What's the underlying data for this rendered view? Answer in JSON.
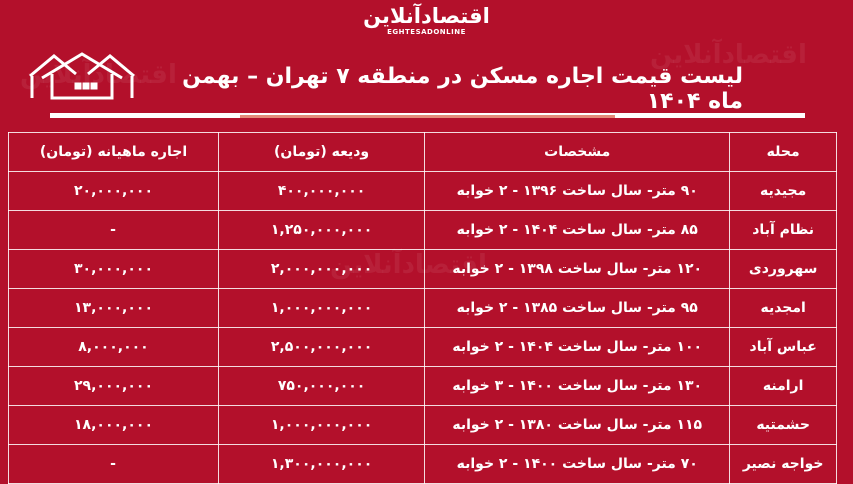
{
  "brand": {
    "name_fa": "اقتصادآنلاین",
    "name_en": "EGHTESADONLINE"
  },
  "title": "لیست قیمت اجاره مسکن در منطقه ۷ تهران – بهمن ماه ۱۴۰۴",
  "colors": {
    "background": "#b3102b",
    "text": "#ffffff",
    "accent_bar": "#e58a7a"
  },
  "icons": [
    "house-icon"
  ],
  "table": {
    "headers": {
      "neighborhood": "محله",
      "specs": "مشخصات",
      "deposit": "ودیعه (تومان)",
      "rent": "اجاره ماهیانه (تومان)"
    },
    "rows": [
      {
        "neighborhood": "مجیدیه",
        "specs": "۹۰ متر- سال ساخت ۱۳۹۶ - ۲ خوابه",
        "deposit": "۴۰۰,۰۰۰,۰۰۰",
        "rent": "۲۰,۰۰۰,۰۰۰"
      },
      {
        "neighborhood": "نظام آباد",
        "specs": "۸۵ متر- سال ساخت ۱۴۰۴ - ۲ خوابه",
        "deposit": "۱,۲۵۰,۰۰۰,۰۰۰",
        "rent": "-"
      },
      {
        "neighborhood": "سهروردی",
        "specs": "۱۲۰ متر- سال ساخت ۱۳۹۸ - ۲ خوابه",
        "deposit": "۲,۰۰۰,۰۰۰,۰۰۰",
        "rent": "۳۰,۰۰۰,۰۰۰"
      },
      {
        "neighborhood": "امجدیه",
        "specs": "۹۵ متر- سال ساخت ۱۳۸۵ - ۲ خوابه",
        "deposit": "۱,۰۰۰,۰۰۰,۰۰۰",
        "rent": "۱۳,۰۰۰,۰۰۰"
      },
      {
        "neighborhood": "عباس آباد",
        "specs": "۱۰۰ متر- سال ساخت ۱۴۰۴ - ۲ خوابه",
        "deposit": "۲,۵۰۰,۰۰۰,۰۰۰",
        "rent": "۸,۰۰۰,۰۰۰"
      },
      {
        "neighborhood": "ارامنه",
        "specs": "۱۳۰ متر- سال ساخت ۱۴۰۰ - ۳ خوابه",
        "deposit": "۷۵۰,۰۰۰,۰۰۰",
        "rent": "۲۹,۰۰۰,۰۰۰"
      },
      {
        "neighborhood": "حشمتیه",
        "specs": "۱۱۵ متر- سال ساخت ۱۳۸۰ - ۲ خوابه",
        "deposit": "۱,۰۰۰,۰۰۰,۰۰۰",
        "rent": "۱۸,۰۰۰,۰۰۰"
      },
      {
        "neighborhood": "خواجه نصیر",
        "specs": "۷۰ متر- سال ساخت ۱۴۰۰ - ۲ خوابه",
        "deposit": "۱,۳۰۰,۰۰۰,۰۰۰",
        "rent": "-"
      }
    ]
  }
}
